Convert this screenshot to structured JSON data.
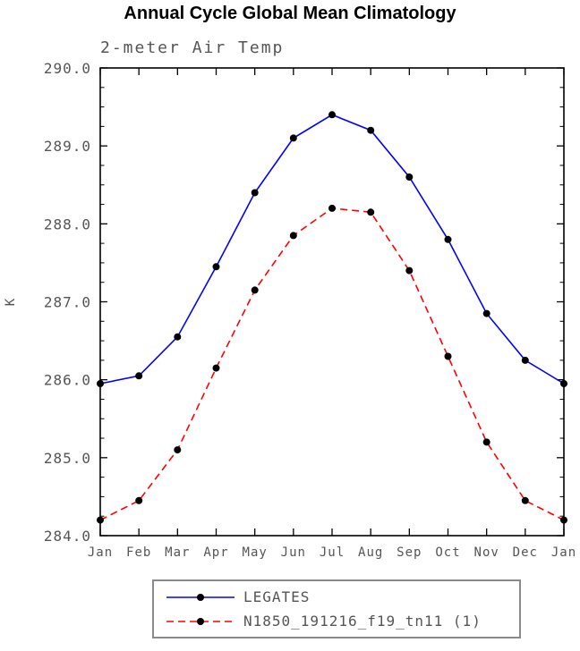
{
  "chart_data": {
    "type": "line",
    "title": "Annual Cycle Global Mean Climatology",
    "subtitle": "2-meter Air Temp",
    "ylabel": "K",
    "categories": [
      "Jan",
      "Feb",
      "Mar",
      "Apr",
      "May",
      "Jun",
      "Jul",
      "Aug",
      "Sep",
      "Oct",
      "Nov",
      "Dec",
      "Jan"
    ],
    "series": [
      {
        "name": "LEGATES",
        "line_color": "#0000ff",
        "line_style": "solid",
        "marker": "filled-circle",
        "marker_color": "#000000",
        "values": [
          285.95,
          286.05,
          286.55,
          287.45,
          288.4,
          289.1,
          289.4,
          289.2,
          288.6,
          287.8,
          286.85,
          286.25,
          285.95
        ]
      },
      {
        "name": "N1850_191216_f19_tn11 (1)",
        "line_color": "#ff0000",
        "line_style": "dashed",
        "marker": "filled-circle",
        "marker_color": "#000000",
        "values": [
          284.2,
          284.45,
          285.1,
          286.15,
          287.15,
          287.85,
          288.2,
          288.15,
          287.4,
          286.3,
          285.2,
          284.45,
          284.2
        ]
      }
    ],
    "ylim": [
      284.0,
      290.0
    ],
    "yticks": [
      284.0,
      285.0,
      286.0,
      287.0,
      288.0,
      289.0,
      290.0
    ],
    "ytick_format": "one-decimal",
    "grid": false,
    "legend_position": "bottom-center",
    "colors": {
      "axis_text": "#555555",
      "axis_line": "#000000",
      "legend_border": "#8a8a8a",
      "title_text": "#000000"
    }
  }
}
